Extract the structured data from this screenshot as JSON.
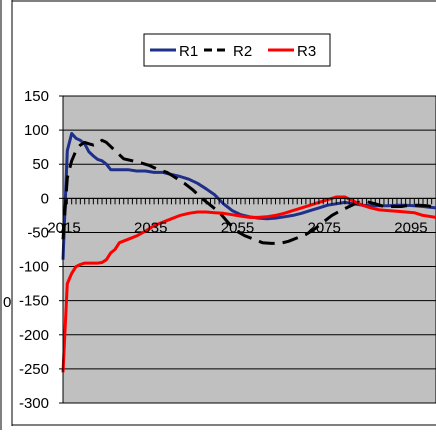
{
  "stray_mark": "0",
  "chart_data": {
    "type": "line",
    "title": "",
    "xlabel": "",
    "ylabel": "",
    "xlim": [
      2015,
      2101
    ],
    "ylim": [
      -300,
      150
    ],
    "y_ticks": [
      150,
      100,
      50,
      0,
      -50,
      -100,
      -150,
      -200,
      -250,
      -300
    ],
    "y_tick_labels": [
      "150",
      "100",
      "50",
      "0",
      "-50",
      "-100",
      "-150",
      "-200",
      "-250",
      "-300"
    ],
    "x_ticks": [
      2015,
      2035,
      2055,
      2075,
      2095
    ],
    "x_tick_labels": [
      "2015",
      "2035",
      "2055",
      "2075",
      "2095"
    ],
    "grid": "horizontal major gridlines",
    "plot_background": "#c0c0c0",
    "legend": {
      "position": "top",
      "labels": [
        "R1",
        "R2",
        "R3"
      ]
    },
    "series": [
      {
        "name": "R1",
        "color": "#1f2f8a",
        "dash": "solid",
        "x": [
          2015,
          2016,
          2017,
          2018,
          2019,
          2020,
          2021,
          2022,
          2023,
          2024,
          2025,
          2026,
          2027,
          2028,
          2030,
          2032,
          2034,
          2036,
          2038,
          2040,
          2042,
          2044,
          2046,
          2048,
          2050,
          2052,
          2054,
          2056,
          2058,
          2060,
          2062,
          2064,
          2066,
          2068,
          2070,
          2072,
          2074,
          2076,
          2078,
          2080,
          2082,
          2084,
          2086,
          2088,
          2090,
          2092,
          2094,
          2096,
          2098,
          2101
        ],
        "y": [
          -90,
          70,
          95,
          88,
          85,
          80,
          68,
          62,
          57,
          55,
          50,
          42,
          42,
          42,
          42,
          40,
          40,
          38,
          38,
          35,
          32,
          28,
          22,
          14,
          5,
          -8,
          -18,
          -24,
          -27,
          -29,
          -30,
          -29,
          -27,
          -25,
          -22,
          -18,
          -14,
          -10,
          -8,
          -6,
          -8,
          -10,
          -11,
          -11,
          -11,
          -10,
          -10,
          -11,
          -12,
          -14
        ]
      },
      {
        "name": "R2",
        "color": "#000000",
        "dash": "dashed",
        "x": [
          2015,
          2016,
          2017,
          2018,
          2019,
          2020,
          2021,
          2022,
          2023,
          2024,
          2025,
          2027,
          2029,
          2031,
          2033,
          2035,
          2037,
          2039,
          2041,
          2043,
          2045,
          2047,
          2049,
          2051,
          2053,
          2055,
          2057,
          2059,
          2061,
          2063,
          2065,
          2067,
          2069,
          2071,
          2073,
          2075,
          2077,
          2079,
          2081,
          2083,
          2085,
          2087,
          2089,
          2091,
          2093,
          2095,
          2097,
          2099,
          2101
        ],
        "y": [
          -60,
          30,
          55,
          70,
          78,
          82,
          80,
          78,
          80,
          85,
          82,
          70,
          58,
          55,
          52,
          48,
          42,
          38,
          30,
          22,
          12,
          0,
          -10,
          -20,
          -35,
          -48,
          -55,
          -60,
          -65,
          -66,
          -66,
          -63,
          -58,
          -53,
          -45,
          -35,
          -25,
          -18,
          -12,
          -6,
          -5,
          -8,
          -12,
          -12,
          -12,
          -10,
          -10,
          -11,
          -13
        ]
      },
      {
        "name": "R3",
        "color": "#ff0000",
        "dash": "solid",
        "x": [
          2015,
          2016,
          2017,
          2018,
          2019,
          2020,
          2021,
          2022,
          2023,
          2024,
          2025,
          2026,
          2027,
          2028,
          2030,
          2032,
          2034,
          2036,
          2038,
          2040,
          2042,
          2044,
          2046,
          2048,
          2050,
          2052,
          2054,
          2056,
          2058,
          2060,
          2062,
          2064,
          2066,
          2068,
          2070,
          2072,
          2074,
          2076,
          2078,
          2080,
          2082,
          2084,
          2086,
          2088,
          2090,
          2092,
          2094,
          2096,
          2098,
          2101
        ],
        "y": [
          -255,
          -125,
          -110,
          -100,
          -97,
          -95,
          -95,
          -95,
          -95,
          -94,
          -90,
          -80,
          -75,
          -65,
          -60,
          -55,
          -48,
          -40,
          -35,
          -30,
          -25,
          -22,
          -20,
          -20,
          -21,
          -22,
          -24,
          -26,
          -28,
          -28,
          -27,
          -25,
          -22,
          -18,
          -14,
          -10,
          -6,
          -2,
          2,
          2,
          -4,
          -10,
          -14,
          -17,
          -18,
          -19,
          -20,
          -21,
          -25,
          -28
        ]
      }
    ]
  }
}
